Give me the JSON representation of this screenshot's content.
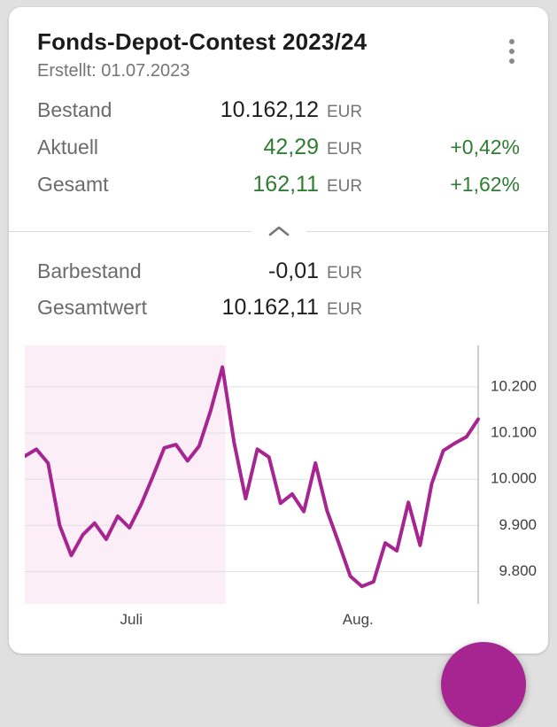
{
  "colors": {
    "accent": "#a62590",
    "positive": "#2e7d32",
    "highlight_region": "#fbeef6"
  },
  "card": {
    "title": "Fonds-Depot-Contest 2023/24",
    "created": "Erstellt: 01.07.2023",
    "menu_icon": "kebab-menu-icon",
    "collapse_icon": "chevron-up-icon",
    "summary_rows": [
      {
        "label": "Bestand",
        "value": "10.162,12",
        "currency": "EUR",
        "percent": ""
      },
      {
        "label": "Aktuell",
        "value": "42,29",
        "currency": "EUR",
        "percent": "+0,42%"
      },
      {
        "label": "Gesamt",
        "value": "162,11",
        "currency": "EUR",
        "percent": "+1,62%"
      }
    ],
    "detail_rows": [
      {
        "label": "Barbestand",
        "value": "-0,01",
        "currency": "EUR"
      },
      {
        "label": "Gesamtwert",
        "value": "10.162,11",
        "currency": "EUR"
      }
    ]
  },
  "chart_data": {
    "type": "line",
    "title": "",
    "xlabel": "",
    "ylabel": "",
    "y_axis_side": "right",
    "grid": true,
    "legend": "none",
    "ylim": [
      9730,
      10290
    ],
    "line_color": "#a62590",
    "highlight_region": {
      "start_fraction": 0.0,
      "end_fraction": 0.443,
      "color": "#fbeef6"
    },
    "yticks": [
      {
        "value": 10200,
        "label": "10.200"
      },
      {
        "value": 10100,
        "label": "10.100"
      },
      {
        "value": 10000,
        "label": "10.000"
      },
      {
        "value": 9900,
        "label": "9.900"
      },
      {
        "value": 9800,
        "label": "9.800"
      }
    ],
    "xticks": [
      {
        "label": "Juli",
        "fraction": 0.235
      },
      {
        "label": "Aug.",
        "fraction": 0.735
      }
    ],
    "values": [
      10050,
      10065,
      10035,
      9900,
      9835,
      9880,
      9905,
      9870,
      9920,
      9895,
      9945,
      10005,
      10068,
      10075,
      10040,
      10072,
      10150,
      10243,
      10080,
      9958,
      10065,
      10048,
      9948,
      9968,
      9930,
      10035,
      9932,
      9862,
      9790,
      9768,
      9778,
      9862,
      9845,
      9950,
      9857,
      9990,
      10062,
      10078,
      10092,
      10130
    ]
  }
}
